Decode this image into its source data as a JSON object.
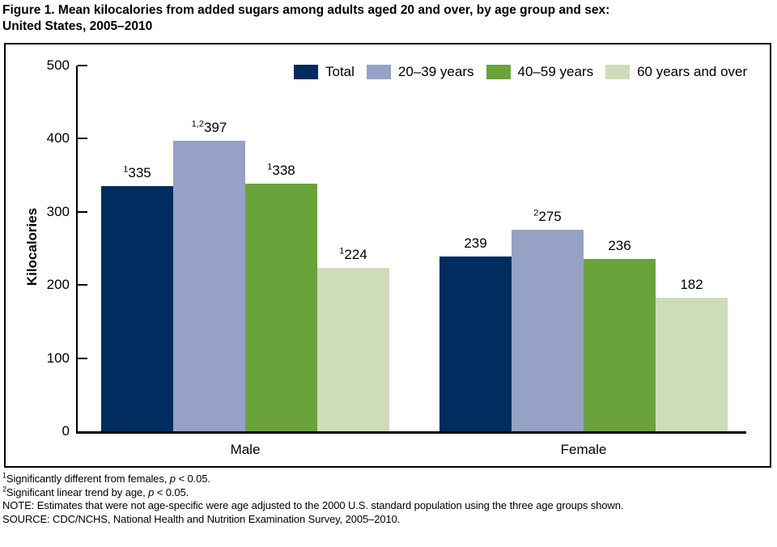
{
  "title": {
    "line1": "Figure 1. Mean kilocalories from added sugars among adults aged 20 and over, by age group and sex:",
    "line2": "United States, 2005–2010"
  },
  "chart_data": {
    "type": "bar",
    "title": "Mean kilocalories from added sugars among adults aged 20 and over, by age group and sex: United States, 2005–2010",
    "xlabel": "",
    "ylabel": "Kilocalories",
    "ylim": [
      0,
      500
    ],
    "yticks": [
      0,
      100,
      200,
      300,
      400,
      500
    ],
    "grid": false,
    "legend_position": "top-right-inside",
    "categories": [
      "Male",
      "Female"
    ],
    "series": [
      {
        "name": "Total",
        "color": "#002c5f",
        "values": [
          335,
          239
        ],
        "sups": [
          "1",
          ""
        ]
      },
      {
        "name": "20–39 years",
        "color": "#95a2c5",
        "values": [
          397,
          275
        ],
        "sups": [
          "1,2",
          "2"
        ]
      },
      {
        "name": "40–59 years",
        "color": "#6aa23c",
        "values": [
          338,
          236
        ],
        "sups": [
          "1",
          ""
        ]
      },
      {
        "name": "60 years and over",
        "color": "#cfdcba",
        "values": [
          224,
          182
        ],
        "sups": [
          "1",
          ""
        ]
      }
    ]
  },
  "footnotes": [
    {
      "sup": "1",
      "pre": "Significantly different from females, ",
      "italic": "p",
      "post": " < 0.05."
    },
    {
      "sup": "2",
      "pre": "Significant linear trend by age, ",
      "italic": "p",
      "post": " < 0.05."
    },
    {
      "sup": "",
      "pre": "NOTE: Estimates that were not age-specific were age adjusted to the 2000 U.S. standard population using the three age groups shown.",
      "italic": "",
      "post": ""
    },
    {
      "sup": "",
      "pre": "SOURCE: CDC/NCHS, National Health and Nutrition Examination Survey, 2005–2010.",
      "italic": "",
      "post": ""
    }
  ]
}
